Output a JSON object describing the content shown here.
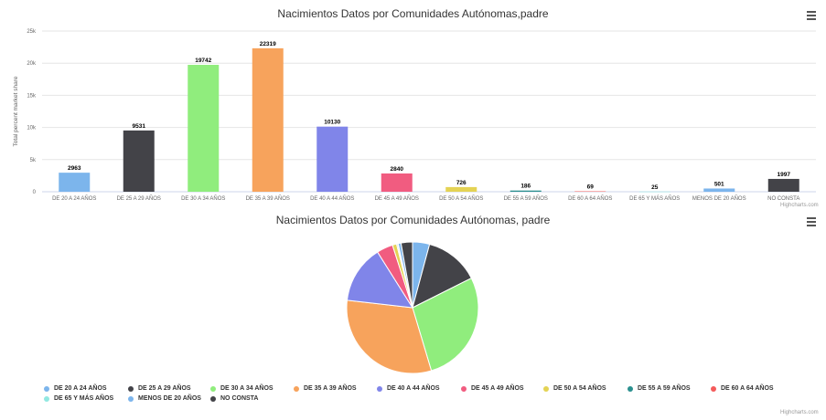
{
  "bar_chart": {
    "title": "Nacimientos Datos por Comunidades Autónomas,padre",
    "credits": "Highcharts.com"
  },
  "pie_chart": {
    "title": "Nacimientos Datos por Comunidades Autónomas, padre",
    "credits": "Highcharts.com"
  },
  "chart_data": [
    {
      "type": "bar",
      "title": "Nacimientos Datos por Comunidades Autónomas,padre",
      "xlabel": "",
      "ylabel": "Total percent market share",
      "ylim": [
        0,
        25000
      ],
      "yticks": [
        0,
        5000,
        10000,
        15000,
        20000,
        25000
      ],
      "ytick_labels": [
        "0",
        "5k",
        "10k",
        "15k",
        "20k",
        "25k"
      ],
      "grid": true,
      "categories": [
        "DE 20 A 24 AÑOS",
        "DE 25 A 29 AÑOS",
        "DE 30 A 34 AÑOS",
        "DE 35 A 39 AÑOS",
        "DE 40 A 44 AÑOS",
        "DE 45 A 49 AÑOS",
        "DE 50 A 54 AÑOS",
        "DE 55 A 59 AÑOS",
        "DE 60 A 64 AÑOS",
        "DE 65 Y MÁS AÑOS",
        "MENOS DE 20 AÑOS",
        "NO CONSTA"
      ],
      "values": [
        2963,
        9531,
        19742,
        22319,
        10130,
        2840,
        726,
        186,
        69,
        25,
        501,
        1997
      ],
      "data_labels": [
        "2963",
        "9531",
        "19742",
        "22319",
        "10130",
        "2840",
        "726",
        "186",
        "69",
        "25",
        "501",
        "1997"
      ],
      "colors": [
        "#7cb5ec",
        "#434348",
        "#90ed7d",
        "#f7a35c",
        "#8085e9",
        "#f15c80",
        "#e4d354",
        "#2b908f",
        "#f45b5b",
        "#91e8e1",
        "#7cb5ec",
        "#434348"
      ]
    },
    {
      "type": "pie",
      "title": "Nacimientos Datos por Comunidades Autónomas, padre",
      "legend_position": "bottom",
      "categories": [
        "DE 20 A 24 AÑOS",
        "DE 25 A 29 AÑOS",
        "DE 30 A 34 AÑOS",
        "DE 35 A 39 AÑOS",
        "DE 40 A 44 AÑOS",
        "DE 45 A 49 AÑOS",
        "DE 50 A 54 AÑOS",
        "DE 55 A 59 AÑOS",
        "DE 60 A 64 AÑOS",
        "DE 65 Y MÁS AÑOS",
        "MENOS DE 20 AÑOS",
        "NO CONSTA"
      ],
      "values": [
        2963,
        9531,
        19742,
        22319,
        10130,
        2840,
        726,
        186,
        69,
        25,
        501,
        1997
      ],
      "colors": [
        "#7cb5ec",
        "#434348",
        "#90ed7d",
        "#f7a35c",
        "#8085e9",
        "#f15c80",
        "#e4d354",
        "#2b908f",
        "#f45b5b",
        "#91e8e1",
        "#7cb5ec",
        "#434348"
      ]
    }
  ]
}
